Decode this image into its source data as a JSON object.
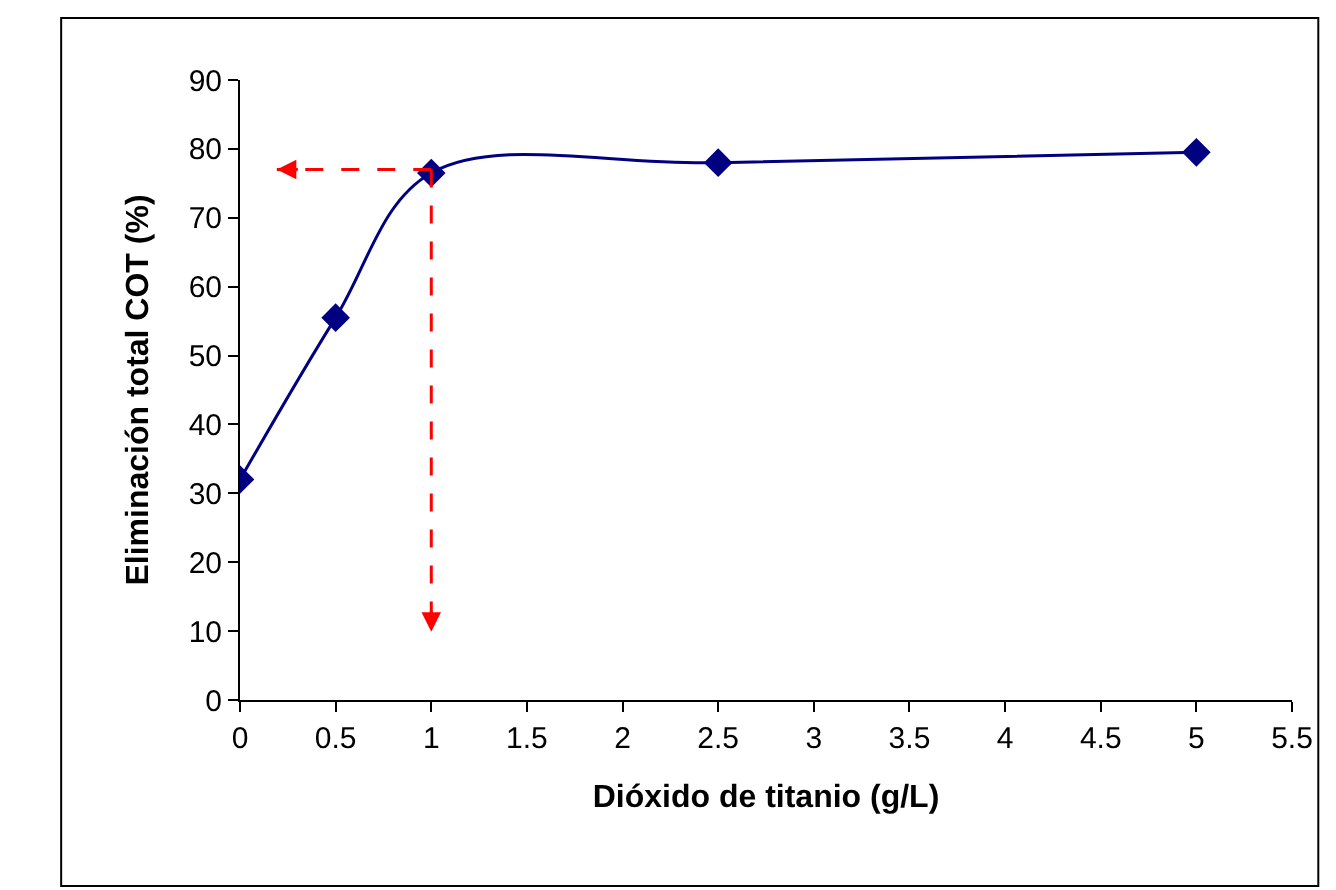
{
  "chart_data": {
    "type": "line",
    "xlabel": "Dióxido de titanio (g/L)",
    "ylabel": "Eliminación total COT (%)",
    "xlim": [
      0,
      5.5
    ],
    "xticks": [
      0,
      0.5,
      1,
      1.5,
      2,
      2.5,
      3,
      3.5,
      4,
      4.5,
      5,
      5.5
    ],
    "ylim": [
      0,
      90
    ],
    "yticks": [
      0,
      10,
      20,
      30,
      40,
      50,
      60,
      70,
      80,
      90
    ],
    "ref_lines": [
      {
        "axis": "y",
        "value": 77,
        "color": "#ff0000",
        "line_style": "dashed"
      },
      {
        "axis": "x",
        "value": 1,
        "color": "#ff0000",
        "line_style": "dashed"
      }
    ],
    "series": [
      {
        "color": "#000080",
        "x": [
          0,
          0.5,
          1,
          2.5,
          5
        ],
        "values": [
          32,
          55.5,
          76.5,
          78,
          79.5
        ],
        "marker": "diamond",
        "line_style": "solid"
      }
    ]
  }
}
